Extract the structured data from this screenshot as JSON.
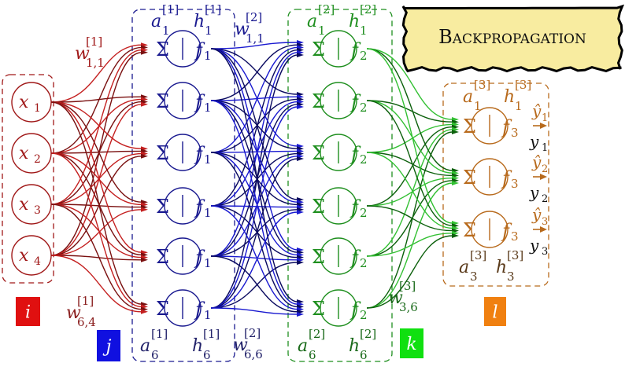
{
  "title": "Backpropagation",
  "colors": {
    "input": "#a01818",
    "hidden1": "#1a1a90",
    "hidden2": "#1f8f1f",
    "output": "#b86a1c",
    "edge1": [
      "#c42020",
      "#7a1010"
    ],
    "edge2": [
      "#1a1ad0",
      "#0a0a60"
    ],
    "edge3": [
      "#33c033",
      "#0c600c"
    ],
    "title_bg": "#f8eca0"
  },
  "inputs": [
    {
      "base": "x",
      "sub": "1"
    },
    {
      "base": "x",
      "sub": "2"
    },
    {
      "base": "x",
      "sub": "3"
    },
    {
      "base": "x",
      "sub": "4"
    }
  ],
  "hidden1": {
    "sigma": "Σ",
    "f": "f",
    "f_sub": "1",
    "count": 6
  },
  "hidden2": {
    "sigma": "Σ",
    "f": "f",
    "f_sub": "2",
    "count": 6
  },
  "output": {
    "sigma": "Σ",
    "f": "f",
    "f_sub": "3",
    "count": 3
  },
  "labels": {
    "w1_top": {
      "base": "w",
      "sup": "[1]",
      "sub": "1,1"
    },
    "w1_bot": {
      "base": "w",
      "sup": "[1]",
      "sub": "6,4"
    },
    "w2_top": {
      "base": "w",
      "sup": "[2]",
      "sub": "1,1"
    },
    "w2_bot": {
      "base": "w",
      "sup": "[2]",
      "sub": "6,6"
    },
    "w3_bot": {
      "base": "w",
      "sup": "[3]",
      "sub": "3,6"
    },
    "a1_top": {
      "base": "a",
      "sup": "[1]",
      "sub": "1"
    },
    "h1_top": {
      "base": "h",
      "sup": "[1]",
      "sub": "1"
    },
    "a1_bot": {
      "base": "a",
      "sup": "[1]",
      "sub": "6"
    },
    "h1_bot": {
      "base": "h",
      "sup": "[1]",
      "sub": "6"
    },
    "a2_top": {
      "base": "a",
      "sup": "[2]",
      "sub": "1"
    },
    "h2_top": {
      "base": "h",
      "sup": "[2]",
      "sub": "1"
    },
    "a2_bot": {
      "base": "a",
      "sup": "[2]",
      "sub": "6"
    },
    "h2_bot": {
      "base": "h",
      "sup": "[2]",
      "sub": "6"
    },
    "a3_top": {
      "base": "a",
      "sup": "[3]",
      "sub": "1"
    },
    "h3_top": {
      "base": "h",
      "sup": "[3]",
      "sub": "1"
    },
    "a3_bot": {
      "base": "a",
      "sup": "[3]",
      "sub": "3"
    },
    "h3_bot": {
      "base": "h",
      "sup": "[3]",
      "sub": "3"
    }
  },
  "outputs": [
    {
      "pred": "ŷ",
      "sub": "1",
      "target": "y"
    },
    {
      "pred": "ŷ",
      "sub": "2",
      "target": "y"
    },
    {
      "pred": "ŷ",
      "sub": "3",
      "target": "y"
    }
  ],
  "index_badges": [
    {
      "text": "i",
      "color": "#e01010"
    },
    {
      "text": "j",
      "color": "#1010e0"
    },
    {
      "text": "k",
      "color": "#10e010"
    },
    {
      "text": "l",
      "color": "#f08010"
    }
  ]
}
